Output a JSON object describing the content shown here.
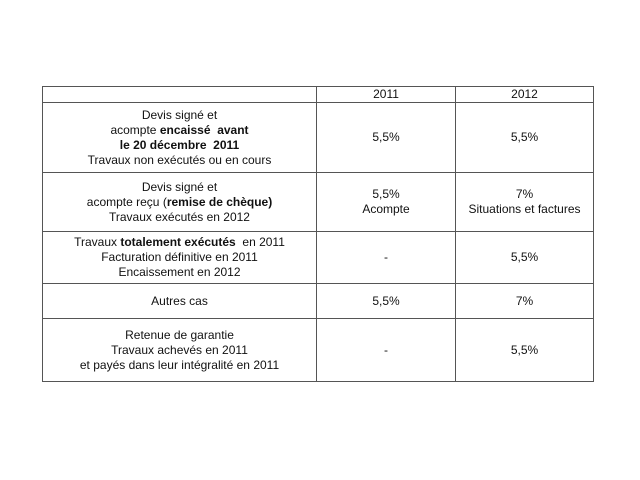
{
  "table": {
    "columns": [
      "2011",
      "2012"
    ],
    "rows": [
      {
        "label": [
          [
            {
              "text": "Devis signé et",
              "bold": false
            }
          ],
          [
            {
              "text": "acompte ",
              "bold": false
            },
            {
              "text": "encaissé  avant",
              "bold": true
            }
          ],
          [
            {
              "text": "le 20 décembre  2011",
              "bold": true
            }
          ],
          [
            {
              "text": "Travaux non exécutés ou en cours",
              "bold": false
            }
          ]
        ],
        "cells": [
          [
            "5,5%"
          ],
          [
            "5,5%"
          ]
        ]
      },
      {
        "label": [
          [
            {
              "text": "Devis signé et",
              "bold": false
            }
          ],
          [
            {
              "text": "acompte reçu (",
              "bold": false
            },
            {
              "text": "remise de chèque)",
              "bold": true
            }
          ],
          [
            {
              "text": "Travaux exécutés en 2012",
              "bold": false
            }
          ]
        ],
        "cells": [
          [
            "5,5%",
            "Acompte"
          ],
          [
            "7%",
            "Situations et factures"
          ]
        ]
      },
      {
        "label": [
          [
            {
              "text": "Travaux ",
              "bold": false
            },
            {
              "text": "totalement exécutés",
              "bold": true
            },
            {
              "text": "  en 2011",
              "bold": false
            }
          ],
          [
            {
              "text": "Facturation définitive en 2011",
              "bold": false
            }
          ],
          [
            {
              "text": "Encaissement en 2012",
              "bold": false
            }
          ]
        ],
        "cells": [
          [
            "-"
          ],
          [
            "5,5%"
          ]
        ]
      },
      {
        "label": [
          [
            {
              "text": "Autres cas",
              "bold": false
            }
          ]
        ],
        "cells": [
          [
            "5,5%"
          ],
          [
            "7%"
          ]
        ]
      },
      {
        "label": [
          [
            {
              "text": "Retenue de garantie",
              "bold": false
            }
          ],
          [
            {
              "text": "Travaux achevés en 2011",
              "bold": false
            }
          ],
          [
            {
              "text": "et payés dans leur intégralité en 2011",
              "bold": false
            }
          ]
        ],
        "cells": [
          [
            "-"
          ],
          [
            "5,5%"
          ]
        ]
      }
    ]
  }
}
